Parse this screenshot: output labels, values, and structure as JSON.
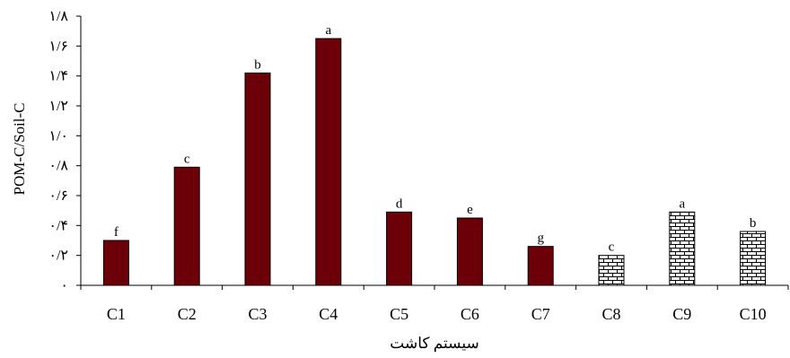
{
  "chart_data": {
    "type": "bar",
    "title": "",
    "xlabel": "سیستم کاشت",
    "ylabel": "POM-C/Soil-C",
    "ylim": [
      0,
      1.8
    ],
    "y_ticks": [
      0,
      0.2,
      0.4,
      0.6,
      0.8,
      1.0,
      1.2,
      1.4,
      1.6,
      1.8
    ],
    "y_tick_labels": [
      "۰",
      "۰/۲",
      "۰/۴",
      "۰/۶",
      "۰/۸",
      "۱/۰",
      "۱/۲",
      "۱/۴",
      "۱/۶",
      "۱/۸"
    ],
    "categories": [
      "C1",
      "C2",
      "C3",
      "C4",
      "C5",
      "C6",
      "C7",
      "C8",
      "C9",
      "C10"
    ],
    "values": [
      0.3,
      0.79,
      1.42,
      1.65,
      0.49,
      0.45,
      0.26,
      0.2,
      0.49,
      0.36
    ],
    "letters": [
      "f",
      "c",
      "b",
      "a",
      "d",
      "e",
      "g",
      "c",
      "a",
      "b"
    ],
    "fill": [
      "solid",
      "solid",
      "solid",
      "solid",
      "solid",
      "solid",
      "solid",
      "brick",
      "brick",
      "brick"
    ],
    "colors": {
      "solid": "#6b0008",
      "brick_bg": "#ffffff",
      "brick_line": "#000000",
      "axis": "#000000"
    },
    "grid": false,
    "legend": "none"
  }
}
